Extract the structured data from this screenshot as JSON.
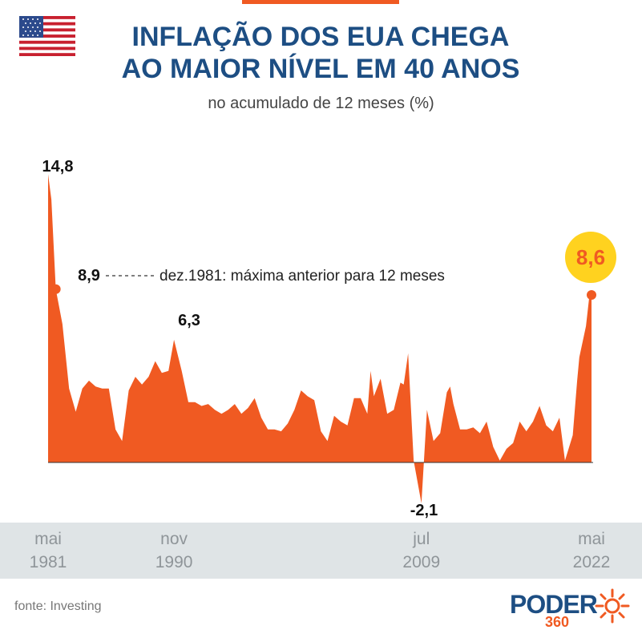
{
  "header": {
    "title_line1": "INFLAÇÃO DOS EUA CHEGA",
    "title_line2": "AO MAIOR NÍVEL EM 40 ANOS",
    "subtitle": "no acumulado de 12 meses (%)"
  },
  "icons": {
    "flag": "us-flag-icon",
    "logo_mark": "sun-logo-icon"
  },
  "colors": {
    "area": "#f05a22",
    "title": "#1d4e83",
    "highlight": "#ffd21f",
    "axis_band": "#dfe4e6",
    "axis_text": "#8f9599"
  },
  "annotation": {
    "text": "dez.1981: máxima anterior para 12 meses"
  },
  "source": "fonte: Investing",
  "logo": {
    "word": "PODER",
    "number": "360"
  },
  "chart_data": {
    "type": "area",
    "title": "INFLAÇÃO DOS EUA CHEGA AO MAIOR NÍVEL EM 40 ANOS",
    "subtitle": "no acumulado de 12 meses (%)",
    "xlabel": "",
    "ylabel": "",
    "x_range": [
      "1981-05",
      "2022-05"
    ],
    "ylim": [
      -2.5,
      15
    ],
    "grid": false,
    "x_ticks": [
      {
        "month": "mai",
        "year": "1981",
        "x": "1981-05"
      },
      {
        "month": "nov",
        "year": "1990",
        "x": "1990-11"
      },
      {
        "month": "jul",
        "year": "2009",
        "x": "2009-07"
      },
      {
        "month": "mai",
        "year": "2022",
        "x": "2022-05"
      }
    ],
    "labels": [
      {
        "text": "14,8",
        "x": "1981-05",
        "y": 14.8
      },
      {
        "text": "8,9",
        "x": "1981-12",
        "y": 8.9
      },
      {
        "text": "6,3",
        "x": "1990-11",
        "y": 6.3
      },
      {
        "text": "-2,1",
        "x": "2009-07",
        "y": -2.1
      },
      {
        "text": "8,6",
        "x": "2022-05",
        "y": 8.6
      }
    ],
    "points": [
      [
        "1981-05",
        14.8
      ],
      [
        "1981-08",
        13.5
      ],
      [
        "1981-12",
        8.9
      ],
      [
        "1982-06",
        7.1
      ],
      [
        "1982-12",
        3.8
      ],
      [
        "1983-06",
        2.6
      ],
      [
        "1983-12",
        3.8
      ],
      [
        "1984-06",
        4.2
      ],
      [
        "1984-12",
        3.9
      ],
      [
        "1985-06",
        3.8
      ],
      [
        "1985-12",
        3.8
      ],
      [
        "1986-06",
        1.7
      ],
      [
        "1986-12",
        1.1
      ],
      [
        "1987-06",
        3.7
      ],
      [
        "1987-12",
        4.4
      ],
      [
        "1988-06",
        4.0
      ],
      [
        "1988-12",
        4.4
      ],
      [
        "1989-06",
        5.2
      ],
      [
        "1989-12",
        4.6
      ],
      [
        "1990-06",
        4.7
      ],
      [
        "1990-11",
        6.3
      ],
      [
        "1991-06",
        4.7
      ],
      [
        "1991-12",
        3.1
      ],
      [
        "1992-06",
        3.1
      ],
      [
        "1992-12",
        2.9
      ],
      [
        "1993-06",
        3.0
      ],
      [
        "1993-12",
        2.7
      ],
      [
        "1994-06",
        2.5
      ],
      [
        "1994-12",
        2.7
      ],
      [
        "1995-06",
        3.0
      ],
      [
        "1995-12",
        2.5
      ],
      [
        "1996-06",
        2.8
      ],
      [
        "1996-12",
        3.3
      ],
      [
        "1997-06",
        2.3
      ],
      [
        "1997-12",
        1.7
      ],
      [
        "1998-06",
        1.7
      ],
      [
        "1998-12",
        1.6
      ],
      [
        "1999-06",
        2.0
      ],
      [
        "1999-12",
        2.7
      ],
      [
        "2000-06",
        3.7
      ],
      [
        "2000-12",
        3.4
      ],
      [
        "2001-06",
        3.2
      ],
      [
        "2001-12",
        1.6
      ],
      [
        "2002-06",
        1.1
      ],
      [
        "2002-12",
        2.4
      ],
      [
        "2003-06",
        2.1
      ],
      [
        "2003-12",
        1.9
      ],
      [
        "2004-06",
        3.3
      ],
      [
        "2004-12",
        3.3
      ],
      [
        "2005-06",
        2.5
      ],
      [
        "2005-09",
        4.7
      ],
      [
        "2005-12",
        3.4
      ],
      [
        "2006-06",
        4.3
      ],
      [
        "2006-12",
        2.5
      ],
      [
        "2007-06",
        2.7
      ],
      [
        "2007-12",
        4.1
      ],
      [
        "2008-03",
        4.0
      ],
      [
        "2008-07",
        5.6
      ],
      [
        "2008-12",
        0.1
      ],
      [
        "2009-07",
        -2.1
      ],
      [
        "2009-12",
        2.7
      ],
      [
        "2010-06",
        1.1
      ],
      [
        "2010-12",
        1.5
      ],
      [
        "2011-06",
        3.6
      ],
      [
        "2011-09",
        3.9
      ],
      [
        "2011-12",
        3.0
      ],
      [
        "2012-06",
        1.7
      ],
      [
        "2012-12",
        1.7
      ],
      [
        "2013-06",
        1.8
      ],
      [
        "2013-12",
        1.5
      ],
      [
        "2014-06",
        2.1
      ],
      [
        "2014-12",
        0.8
      ],
      [
        "2015-06",
        0.1
      ],
      [
        "2015-12",
        0.7
      ],
      [
        "2016-06",
        1.0
      ],
      [
        "2016-12",
        2.1
      ],
      [
        "2017-06",
        1.6
      ],
      [
        "2017-12",
        2.1
      ],
      [
        "2018-06",
        2.9
      ],
      [
        "2018-12",
        1.9
      ],
      [
        "2019-06",
        1.6
      ],
      [
        "2019-12",
        2.3
      ],
      [
        "2020-05",
        0.1
      ],
      [
        "2020-12",
        1.4
      ],
      [
        "2021-04",
        4.2
      ],
      [
        "2021-06",
        5.4
      ],
      [
        "2021-12",
        7.0
      ],
      [
        "2022-03",
        8.5
      ],
      [
        "2022-05",
        8.6
      ]
    ]
  }
}
